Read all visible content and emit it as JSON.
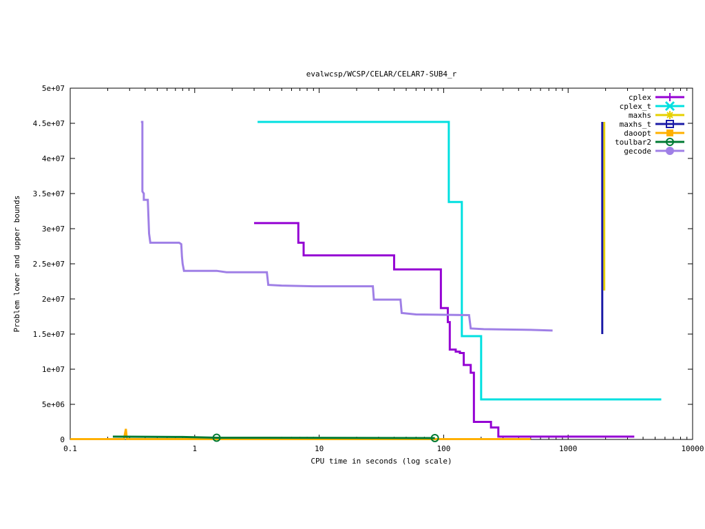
{
  "chart_data": {
    "type": "line",
    "title": "evalwcsp/WCSP/CELAR/CELAR7-SUB4_r",
    "xlabel": "CPU time in seconds (log scale)",
    "ylabel": "Problem lower and upper bounds",
    "xscale": "log",
    "xlim": [
      0.1,
      10000
    ],
    "ylim": [
      0,
      50000000
    ],
    "xticks": [
      {
        "value": 0.1,
        "label": "0.1"
      },
      {
        "value": 1,
        "label": "1"
      },
      {
        "value": 10,
        "label": "10"
      },
      {
        "value": 100,
        "label": "100"
      },
      {
        "value": 1000,
        "label": "1000"
      },
      {
        "value": 10000,
        "label": "10000"
      }
    ],
    "yticks": [
      {
        "value": 0,
        "label": "0"
      },
      {
        "value": 5000000,
        "label": "5e+06"
      },
      {
        "value": 10000000,
        "label": "1e+07"
      },
      {
        "value": 15000000,
        "label": "1.5e+07"
      },
      {
        "value": 20000000,
        "label": "2e+07"
      },
      {
        "value": 25000000,
        "label": "2.5e+07"
      },
      {
        "value": 30000000,
        "label": "3e+07"
      },
      {
        "value": 35000000,
        "label": "3.5e+07"
      },
      {
        "value": 40000000,
        "label": "4e+07"
      },
      {
        "value": 45000000,
        "label": "4.5e+07"
      },
      {
        "value": 50000000,
        "label": "5e+07"
      }
    ],
    "grid": false,
    "legend_position": "top-right",
    "series": [
      {
        "name": "cplex",
        "color": "#9400d3",
        "marker": "plus",
        "points": [
          [
            3.0,
            30800000
          ],
          [
            6.8,
            30800000
          ],
          [
            6.8,
            28000000
          ],
          [
            7.5,
            28000000
          ],
          [
            7.5,
            26200000
          ],
          [
            40,
            26200000
          ],
          [
            40,
            24200000
          ],
          [
            95,
            24200000
          ],
          [
            95,
            18700000
          ],
          [
            108,
            18700000
          ],
          [
            108,
            16700000
          ],
          [
            112,
            16700000
          ],
          [
            112,
            12800000
          ],
          [
            125,
            12800000
          ],
          [
            125,
            12500000
          ],
          [
            135,
            12500000
          ],
          [
            135,
            12300000
          ],
          [
            145,
            12300000
          ],
          [
            145,
            10600000
          ],
          [
            165,
            10600000
          ],
          [
            165,
            9500000
          ],
          [
            175,
            9500000
          ],
          [
            175,
            2500000
          ],
          [
            240,
            2500000
          ],
          [
            240,
            1700000
          ],
          [
            275,
            1700000
          ],
          [
            275,
            400000
          ],
          [
            3400,
            400000
          ]
        ]
      },
      {
        "name": "cplex_t",
        "color": "#00e0e0",
        "marker": "x",
        "points": [
          [
            3.2,
            45200000
          ],
          [
            110,
            45200000
          ],
          [
            110,
            33800000
          ],
          [
            140,
            33800000
          ],
          [
            140,
            14700000
          ],
          [
            200,
            14700000
          ],
          [
            200,
            5700000
          ],
          [
            5600,
            5700000
          ]
        ]
      },
      {
        "name": "maxhs",
        "color": "#e6d000",
        "marker": "star",
        "points": [
          [
            1950,
            21200000
          ],
          [
            1950,
            45200000
          ]
        ]
      },
      {
        "name": "maxhs_t",
        "color": "#1a1aa6",
        "marker": "square",
        "points": [
          [
            1880,
            15000000
          ],
          [
            1880,
            45200000
          ]
        ]
      },
      {
        "name": "daoopt",
        "color": "#ffb000",
        "marker": "filled-square",
        "points": [
          [
            0.1,
            50000
          ],
          [
            0.27,
            50000
          ],
          [
            0.28,
            1500000
          ],
          [
            0.285,
            50000
          ],
          [
            500,
            50000
          ]
        ]
      },
      {
        "name": "toulbar2",
        "color": "#007a33",
        "marker": "circle",
        "points": [
          [
            0.22,
            400000
          ],
          [
            0.8,
            350000
          ],
          [
            1.5,
            250000
          ],
          [
            85,
            200000
          ]
        ],
        "marker_points": [
          [
            1.5,
            250000
          ],
          [
            85,
            200000
          ]
        ]
      },
      {
        "name": "gecode",
        "color": "#9f7fe6",
        "marker": "filled-circle",
        "points": [
          [
            0.37,
            45200000
          ],
          [
            0.38,
            45200000
          ],
          [
            0.38,
            35300000
          ],
          [
            0.39,
            35000000
          ],
          [
            0.39,
            34100000
          ],
          [
            0.42,
            34100000
          ],
          [
            0.43,
            29300000
          ],
          [
            0.44,
            28000000
          ],
          [
            0.75,
            28000000
          ],
          [
            0.78,
            27800000
          ],
          [
            0.79,
            26000000
          ],
          [
            0.8,
            25000000
          ],
          [
            0.82,
            24000000
          ],
          [
            1.5,
            24000000
          ],
          [
            1.8,
            23800000
          ],
          [
            3.8,
            23800000
          ],
          [
            3.9,
            22000000
          ],
          [
            5,
            21900000
          ],
          [
            9,
            21800000
          ],
          [
            27,
            21800000
          ],
          [
            27.5,
            19900000
          ],
          [
            45,
            19900000
          ],
          [
            46,
            18000000
          ],
          [
            60,
            17800000
          ],
          [
            160,
            17700000
          ],
          [
            165,
            15800000
          ],
          [
            210,
            15700000
          ],
          [
            500,
            15600000
          ],
          [
            750,
            15500000
          ]
        ]
      }
    ]
  }
}
